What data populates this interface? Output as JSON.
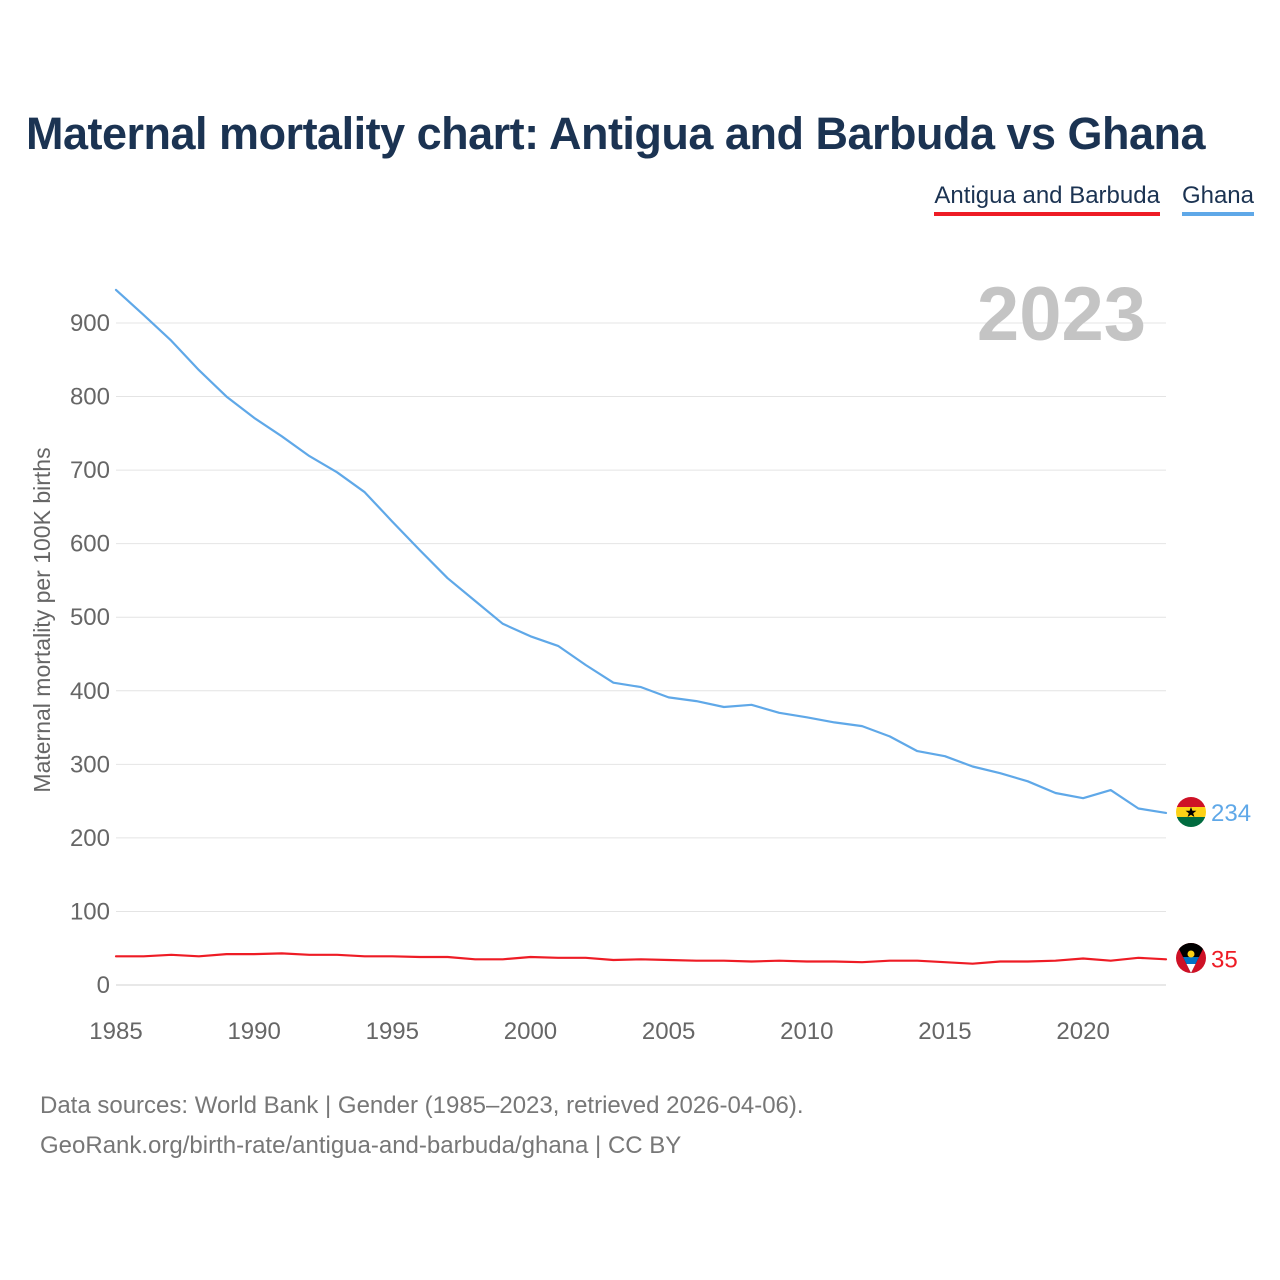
{
  "title": "Maternal mortality chart: Antigua and Barbuda vs Ghana",
  "legend": {
    "antigua": "Antigua and Barbuda",
    "ghana": "Ghana"
  },
  "year_label": "2023",
  "footer": {
    "line1": "Data sources: World Bank | Gender (1985–2023, retrieved 2026-04-06).",
    "line2": "GeoRank.org/birth-rate/antigua-and-barbuda/ghana | CC BY"
  },
  "chart_data": {
    "type": "line",
    "title": "Maternal mortality chart: Antigua and Barbuda vs Ghana",
    "xlabel": "",
    "ylabel": "Maternal mortality per 100K births",
    "xlim": [
      1985,
      2023
    ],
    "ylim": [
      0,
      900
    ],
    "x_ticks": [
      1985,
      1990,
      1995,
      2000,
      2005,
      2010,
      2015,
      2020
    ],
    "y_ticks": [
      0,
      100,
      200,
      300,
      400,
      500,
      600,
      700,
      800,
      900
    ],
    "grid": true,
    "legend_position": "top-right",
    "x": [
      1985,
      1986,
      1987,
      1988,
      1989,
      1990,
      1991,
      1992,
      1993,
      1994,
      1995,
      1996,
      1997,
      1998,
      1999,
      2000,
      2001,
      2002,
      2003,
      2004,
      2005,
      2006,
      2007,
      2008,
      2009,
      2010,
      2011,
      2012,
      2013,
      2014,
      2015,
      2016,
      2017,
      2018,
      2019,
      2020,
      2021,
      2022,
      2023
    ],
    "series": [
      {
        "name": "Antigua and Barbuda",
        "color": "#ee1c25",
        "end_label": "35",
        "values": [
          39,
          39,
          41,
          39,
          42,
          42,
          43,
          41,
          41,
          39,
          39,
          38,
          38,
          35,
          35,
          38,
          37,
          37,
          34,
          35,
          34,
          33,
          33,
          32,
          33,
          32,
          32,
          31,
          33,
          33,
          31,
          29,
          32,
          32,
          33,
          36,
          33,
          37,
          35
        ]
      },
      {
        "name": "Ghana",
        "color": "#5fa8e8",
        "end_label": "234",
        "values": [
          945,
          911,
          876,
          836,
          800,
          771,
          746,
          719,
          697,
          670,
          630,
          591,
          553,
          522,
          491,
          474,
          461,
          435,
          411,
          405,
          391,
          386,
          378,
          381,
          370,
          364,
          357,
          352,
          338,
          318,
          311,
          297,
          288,
          277,
          261,
          254,
          265,
          240,
          234
        ]
      }
    ]
  }
}
